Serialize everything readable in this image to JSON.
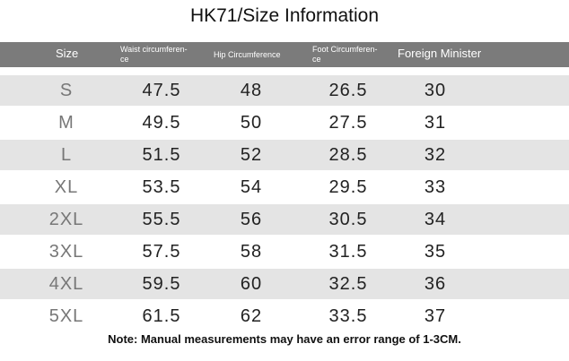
{
  "title": "HK71/Size Information",
  "table": {
    "header": [
      "Size",
      "Waist circumferen-ce",
      "Hip Circumference",
      "Foot Circumferen-ce",
      "Foreign Minister"
    ],
    "rows": [
      [
        "S",
        47.5,
        48,
        26.5,
        30
      ],
      [
        "M",
        49.5,
        50,
        27.5,
        31
      ],
      [
        "L",
        51.5,
        52,
        28.5,
        32
      ],
      [
        "XL",
        53.5,
        54,
        29.5,
        33
      ],
      [
        "2XL",
        55.5,
        56,
        30.5,
        34
      ],
      [
        "3XL",
        57.5,
        58,
        31.5,
        35
      ],
      [
        "4XL",
        59.5,
        60,
        32.5,
        36
      ],
      [
        "5XL",
        61.5,
        62,
        33.5,
        37
      ]
    ]
  },
  "note": "Note: Manual measurements may have an error range of 1-3CM."
}
